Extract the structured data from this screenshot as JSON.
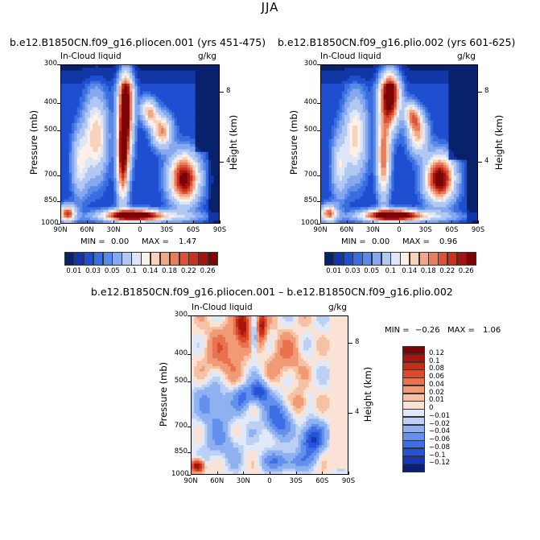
{
  "main_title": "JJA",
  "colors": {
    "scale": [
      "#08216b",
      "#1236a6",
      "#1f4fd0",
      "#3a6ee0",
      "#5a8ae8",
      "#85a8ee",
      "#b0c8f2",
      "#dde6f6",
      "#fdf0e6",
      "#f8d2bb",
      "#f2a888",
      "#e87c5c",
      "#db5238",
      "#c8311f",
      "#a11410",
      "#7a0406"
    ],
    "diverging": [
      "#0b1e7a",
      "#1737b6",
      "#2652d6",
      "#3f6ee4",
      "#6390ec",
      "#8fb1f0",
      "#bcd0f4",
      "#e1e9f8",
      "#fae3d4",
      "#f6c2a5",
      "#f09b76",
      "#e8724f",
      "#dc4a2e",
      "#c62e1a",
      "#a8150d",
      "#7d0404"
    ]
  },
  "chart_data": [
    {
      "type": "heatmap",
      "title": "b.e12.B1850CN.f09_g16.pliocen.001 (yrs 451-475)",
      "left_annotation": "In-Cloud liquid",
      "units": "g/kg",
      "xlabel": "",
      "ylabel": "Pressure (mb)",
      "y2label": "Height (km)",
      "x_ticks": [
        "90N",
        "60N",
        "30N",
        "0",
        "30S",
        "60S",
        "90S"
      ],
      "x_tick_values": [
        90,
        60,
        30,
        0,
        -30,
        -60,
        -90
      ],
      "y_ticks": [
        "300",
        "400",
        "500",
        "700",
        "850",
        "1000"
      ],
      "y_tick_values": [
        300,
        400,
        500,
        700,
        850,
        1000
      ],
      "y2_ticks": [
        "8",
        "4"
      ],
      "y2_tick_values": [
        8,
        4
      ],
      "xlim": [
        90,
        -90
      ],
      "ylim": [
        300,
        1000
      ],
      "min_label": "MIN =",
      "min_value": "0.00",
      "max_label": "MAX =",
      "max_value": "1.47",
      "colorbar_orientation": "horizontal",
      "colorbar_levels": [
        0.01,
        0.02,
        0.03,
        0.04,
        0.05,
        0.07,
        0.1,
        0.12,
        0.14,
        0.16,
        0.18,
        0.2,
        0.22,
        0.24,
        0.26
      ],
      "colorbar_labels": [
        "0.01",
        "0.03",
        "0.05",
        "0.1",
        "0.14",
        "0.18",
        "0.22",
        "0.26"
      ]
    },
    {
      "type": "heatmap",
      "title": "b.e12.B1850CN.f09_g16.plio.002 (yrs 601-625)",
      "left_annotation": "In-Cloud liquid",
      "units": "g/kg",
      "xlabel": "",
      "ylabel": "Pressure (mb)",
      "y2label": "Height (km)",
      "x_ticks": [
        "90N",
        "60N",
        "30N",
        "0",
        "30S",
        "60S",
        "90S"
      ],
      "x_tick_values": [
        90,
        60,
        30,
        0,
        -30,
        -60,
        -90
      ],
      "y_ticks": [
        "300",
        "400",
        "500",
        "700",
        "850",
        "1000"
      ],
      "y_tick_values": [
        300,
        400,
        500,
        700,
        850,
        1000
      ],
      "y2_ticks": [
        "8",
        "4"
      ],
      "y2_tick_values": [
        8,
        4
      ],
      "xlim": [
        90,
        -90
      ],
      "ylim": [
        300,
        1000
      ],
      "min_label": "MIN =",
      "min_value": "0.00",
      "max_label": "MAX =",
      "max_value": "0.96",
      "colorbar_orientation": "horizontal",
      "colorbar_levels": [
        0.01,
        0.02,
        0.03,
        0.04,
        0.05,
        0.07,
        0.1,
        0.12,
        0.14,
        0.16,
        0.18,
        0.2,
        0.22,
        0.24,
        0.26
      ],
      "colorbar_labels": [
        "0.01",
        "0.03",
        "0.05",
        "0.1",
        "0.14",
        "0.18",
        "0.22",
        "0.26"
      ]
    },
    {
      "type": "heatmap",
      "title": "b.e12.B1850CN.f09_g16.pliocen.001 – b.e12.B1850CN.f09_g16.plio.002",
      "left_annotation": "In-Cloud liquid",
      "units": "g/kg",
      "xlabel": "",
      "ylabel": "Pressure (mb)",
      "y2label": "Height (km)",
      "x_ticks": [
        "90N",
        "60N",
        "30N",
        "0",
        "30S",
        "60S",
        "90S"
      ],
      "x_tick_values": [
        90,
        60,
        30,
        0,
        -30,
        -60,
        -90
      ],
      "y_ticks": [
        "300",
        "400",
        "500",
        "700",
        "850",
        "1000"
      ],
      "y_tick_values": [
        300,
        400,
        500,
        700,
        850,
        1000
      ],
      "y2_ticks": [
        "8",
        "4"
      ],
      "y2_tick_values": [
        8,
        4
      ],
      "xlim": [
        90,
        -90
      ],
      "ylim": [
        300,
        1000
      ],
      "min_label": "MIN =",
      "min_value": "−0.26",
      "max_label": "MAX =",
      "max_value": "1.06",
      "colorbar_orientation": "vertical",
      "colorbar_levels": [
        -0.12,
        -0.1,
        -0.08,
        -0.06,
        -0.04,
        -0.02,
        -0.01,
        0,
        0.01,
        0.02,
        0.04,
        0.06,
        0.08,
        0.1,
        0.12
      ],
      "colorbar_labels": [
        "0.12",
        "0.1",
        "0.08",
        "0.06",
        "0.04",
        "0.02",
        "0.01",
        "0",
        "−0.01",
        "−0.02",
        "−0.04",
        "−0.06",
        "−0.08",
        "−0.1",
        "−0.12"
      ]
    }
  ]
}
